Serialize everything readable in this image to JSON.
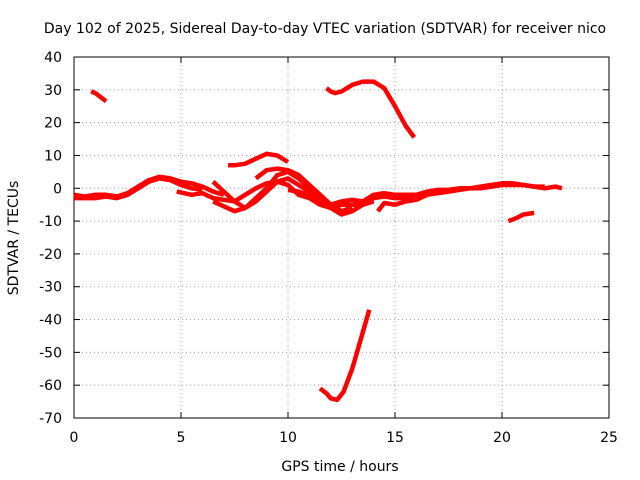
{
  "chart_data": {
    "type": "line",
    "title": "Day 102 of 2025, Sidereal Day-to-day VTEC variation (SDTVAR) for receiver nico",
    "xlabel": "GPS time / hours",
    "ylabel": "SDTVAR / TECUs",
    "xlim": [
      0,
      25
    ],
    "ylim": [
      -70,
      40
    ],
    "xticks": [
      0,
      5,
      10,
      15,
      20,
      25
    ],
    "yticks": [
      -70,
      -60,
      -50,
      -40,
      -30,
      -20,
      -10,
      0,
      10,
      20,
      30,
      40
    ],
    "grid": true,
    "legend": "none",
    "color": "#ff0000",
    "series": [
      {
        "name": "seg-a",
        "x": [
          0.8,
          1.0,
          1.2,
          1.5
        ],
        "y": [
          29.5,
          29,
          28,
          26.5
        ]
      },
      {
        "name": "seg-b",
        "x": [
          0,
          0.5,
          1,
          1.5,
          2,
          2.5,
          3,
          3.5,
          4,
          4.5,
          5,
          5.5,
          6,
          6.5,
          7
        ],
        "y": [
          -2,
          -2.5,
          -2,
          -2,
          -2.5,
          -1.5,
          0.5,
          2.5,
          3.5,
          3,
          2,
          1.5,
          0.5,
          -1,
          -2
        ]
      },
      {
        "name": "seg-c",
        "x": [
          0,
          0.5,
          1,
          1.5,
          2,
          2.5,
          3,
          3.5,
          4,
          4.5,
          5,
          5.5,
          6
        ],
        "y": [
          -3,
          -3,
          -3,
          -2.5,
          -3,
          -2,
          0,
          2,
          3,
          2.5,
          1,
          0,
          -0.5
        ]
      },
      {
        "name": "seg-d",
        "x": [
          4.8,
          5.5,
          6,
          6.5,
          7,
          7.5,
          8,
          8.5,
          9,
          9.5,
          10,
          10.5,
          11,
          11.5,
          12,
          12.5,
          13,
          13.5,
          14,
          14.5,
          15,
          15.5,
          16,
          16.5,
          17,
          17.5,
          18,
          18.5,
          19,
          19.5,
          20,
          20.5,
          21,
          21.5,
          22,
          22.5,
          22.8
        ],
        "y": [
          -1,
          -2,
          -1.5,
          -3,
          -3.5,
          -4,
          -2,
          0,
          1.5,
          2,
          1,
          -2,
          -3,
          -5,
          -6,
          -5,
          -5,
          -5,
          -3,
          -2.5,
          -3,
          -3,
          -2,
          -1,
          -0.5,
          -0.5,
          0,
          0,
          0,
          0.5,
          1,
          1,
          1,
          0.5,
          0,
          0.5,
          0
        ]
      },
      {
        "name": "seg-e",
        "x": [
          6.5,
          7,
          7.5,
          8,
          8.5,
          9,
          9.5,
          10,
          10.5,
          11,
          11.5,
          12,
          12.5,
          13,
          13.5,
          14
        ],
        "y": [
          2,
          -1,
          -4,
          -6,
          -3,
          0,
          4,
          5,
          3,
          0,
          -3,
          -6,
          -8,
          -7,
          -5,
          -4
        ]
      },
      {
        "name": "seg-f",
        "x": [
          6.5,
          7,
          7.5,
          8,
          8.5,
          9,
          9.5,
          10,
          10.5,
          11,
          11.5,
          12,
          12.5,
          13
        ],
        "y": [
          -4,
          -5.5,
          -7,
          -6,
          -4,
          -1,
          2,
          3,
          1,
          -1,
          -3,
          -5,
          -7,
          -6
        ]
      },
      {
        "name": "seg-g",
        "x": [
          7.2,
          7.5,
          8,
          8.5,
          9,
          9.5,
          10
        ],
        "y": [
          7,
          7,
          7.5,
          9,
          10.5,
          10,
          8
        ]
      },
      {
        "name": "seg-h",
        "x": [
          8.5,
          9,
          9.5,
          10,
          10.5,
          11,
          11.5,
          12
        ],
        "y": [
          3,
          5.5,
          6,
          5.5,
          4,
          1,
          -2,
          -5
        ]
      },
      {
        "name": "seg-i",
        "x": [
          10,
          10.5,
          11,
          11.5,
          12,
          12.5,
          13,
          13.5,
          14
        ],
        "y": [
          -0.5,
          -1,
          -2,
          -3.5,
          -5,
          -4,
          -3.5,
          -4,
          -3.5
        ]
      },
      {
        "name": "seg-j",
        "x": [
          12.7,
          13,
          13.5,
          14,
          14.5,
          15,
          15.5,
          16
        ],
        "y": [
          -6,
          -5,
          -4,
          -2,
          -1.5,
          -2,
          -2,
          -2
        ]
      },
      {
        "name": "seg-k",
        "x": [
          14.2,
          14.5,
          15,
          15.5,
          16,
          16.5,
          17,
          17.5,
          18,
          18.5,
          19,
          19.5,
          20,
          20.5,
          21,
          21.5,
          22
        ],
        "y": [
          -7,
          -4.5,
          -5,
          -4,
          -3.5,
          -2,
          -1.5,
          -1,
          -0.5,
          0,
          0.5,
          1,
          1.5,
          1.5,
          1,
          0.5,
          0.5
        ]
      },
      {
        "name": "seg-l",
        "x": [
          11.8,
          12,
          12.2,
          12.5,
          13,
          13.5,
          14,
          14.5,
          15,
          15.5,
          15.9
        ],
        "y": [
          30.5,
          29.5,
          29,
          29.5,
          31.5,
          32.5,
          32.5,
          30.5,
          25,
          19,
          15.5
        ]
      },
      {
        "name": "seg-m",
        "x": [
          11.5,
          11.8,
          12,
          12.3,
          12.6,
          13,
          13.4,
          13.8
        ],
        "y": [
          -61,
          -62.5,
          -64,
          -64.5,
          -62,
          -55,
          -46,
          -37
        ]
      },
      {
        "name": "seg-n",
        "x": [
          20.3,
          20.7,
          21,
          21.5
        ],
        "y": [
          -10,
          -9,
          -8,
          -7.5
        ]
      }
    ]
  }
}
